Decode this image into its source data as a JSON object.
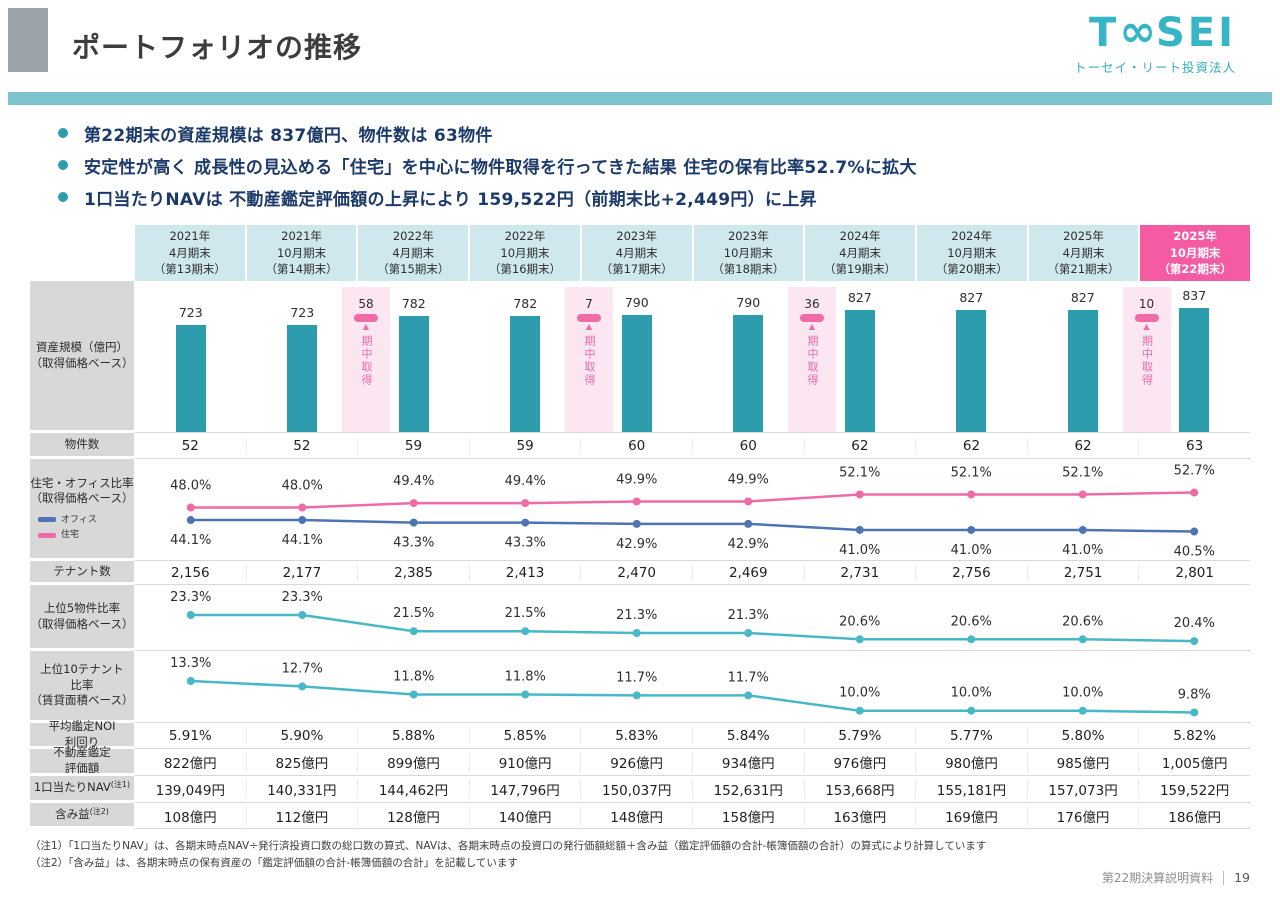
{
  "header": {
    "title": "ポートフォリオの推移",
    "logo": {
      "t": "T",
      "infinity": "∞",
      "sei": "SEI",
      "subtitle": "トーセイ・リート投資法人"
    }
  },
  "bullets": [
    "第22期末の資産規模は 837億円、物件数は 63物件",
    "安定性が高く 成長性の見込める「住宅」を中心に物件取得を行ってきた結果 住宅の保有比率52.7%に拡大",
    "1口当たりNAVは 不動産鑑定評価額の上昇により 159,522円（前期末比+2,449円）に上昇"
  ],
  "periods": [
    {
      "lines": [
        "2021年",
        "4月期末",
        "（第13期末）"
      ],
      "highlight": false
    },
    {
      "lines": [
        "2021年",
        "10月期末",
        "（第14期末）"
      ],
      "highlight": false
    },
    {
      "lines": [
        "2022年",
        "4月期末",
        "（第15期末）"
      ],
      "highlight": false
    },
    {
      "lines": [
        "2022年",
        "10月期末",
        "（第16期末）"
      ],
      "highlight": false
    },
    {
      "lines": [
        "2023年",
        "4月期末",
        "（第17期末）"
      ],
      "highlight": false
    },
    {
      "lines": [
        "2023年",
        "10月期末",
        "（第18期末）"
      ],
      "highlight": false
    },
    {
      "lines": [
        "2024年",
        "4月期末",
        "（第19期末）"
      ],
      "highlight": false
    },
    {
      "lines": [
        "2024年",
        "10月期末",
        "（第20期末）"
      ],
      "highlight": false
    },
    {
      "lines": [
        "2025年",
        "4月期末",
        "（第21期末）"
      ],
      "highlight": false
    },
    {
      "lines": [
        "2025年",
        "10月期末",
        "（第22期末）"
      ],
      "highlight": true
    }
  ],
  "labels": {
    "asset": [
      "資産規模（億円）",
      "（取得価格ベース）"
    ],
    "property_count": "物件数",
    "ratio": [
      "住宅・オフィス比率",
      "（取得価格ベース）"
    ],
    "tenant": "テナント数",
    "top5": [
      "上位5物件比率",
      "（取得価格ベース）"
    ],
    "top10": [
      "上位10テナント",
      "比率",
      "（賃貸面積ベース）"
    ],
    "noi": [
      "平均鑑定NOI",
      "利回り"
    ],
    "appraisal": [
      "不動産鑑定",
      "評価額"
    ],
    "nav": "1口当たりNAV",
    "nav_sup": "(注1)",
    "gains": "含み益",
    "gains_sup": "(注2)"
  },
  "legend": {
    "office": "オフィス",
    "residential": "住宅"
  },
  "chart_data": [
    {
      "type": "bar",
      "title": "資産規模（億円）（取得価格ベース）",
      "categories": [
        "第13期末",
        "第14期末",
        "第15期末",
        "第16期末",
        "第17期末",
        "第18期末",
        "第19期末",
        "第20期末",
        "第21期末",
        "第22期末"
      ],
      "values": [
        723,
        723,
        782,
        782,
        790,
        790,
        827,
        827,
        827,
        837
      ],
      "bar_color": "#2d9dad",
      "interim_acquisitions": [
        {
          "after_index": 1,
          "value": 58,
          "label": "期中取得"
        },
        {
          "after_index": 3,
          "value": 7,
          "label": "期中取得"
        },
        {
          "after_index": 5,
          "value": 36,
          "label": "期中取得"
        },
        {
          "after_index": 8,
          "value": 10,
          "label": "期中取得"
        }
      ]
    },
    {
      "type": "line",
      "title": "住宅・オフィス比率（取得価格ベース）",
      "unit": "%",
      "series": [
        {
          "name": "住宅",
          "color": "#ee6ba6",
          "values": [
            48.0,
            48.0,
            49.4,
            49.4,
            49.9,
            49.9,
            52.1,
            52.1,
            52.1,
            52.7
          ]
        },
        {
          "name": "オフィス",
          "color": "#4e74b2",
          "values": [
            44.1,
            44.1,
            43.3,
            43.3,
            42.9,
            42.9,
            41.0,
            41.0,
            41.0,
            40.5
          ]
        }
      ]
    },
    {
      "type": "line",
      "title": "上位5物件比率（取得価格ベース）",
      "unit": "%",
      "series": [
        {
          "name": "上位5物件比率",
          "color": "#49b8c6",
          "values": [
            23.3,
            23.3,
            21.5,
            21.5,
            21.3,
            21.3,
            20.6,
            20.6,
            20.6,
            20.4
          ]
        }
      ]
    },
    {
      "type": "line",
      "title": "上位10テナント比率（賃貸面積ベース）",
      "unit": "%",
      "series": [
        {
          "name": "上位10テナント比率",
          "color": "#49b8c6",
          "values": [
            13.3,
            12.7,
            11.8,
            11.8,
            11.7,
            11.7,
            10.0,
            10.0,
            10.0,
            9.8
          ]
        }
      ]
    },
    {
      "type": "table",
      "rows": [
        {
          "label": "物件数",
          "values": [
            "52",
            "52",
            "59",
            "59",
            "60",
            "60",
            "62",
            "62",
            "62",
            "63"
          ]
        },
        {
          "label": "テナント数",
          "values": [
            "2,156",
            "2,177",
            "2,385",
            "2,413",
            "2,470",
            "2,469",
            "2,731",
            "2,756",
            "2,751",
            "2,801"
          ]
        },
        {
          "label": "平均鑑定NOI利回り",
          "values": [
            "5.91%",
            "5.90%",
            "5.88%",
            "5.85%",
            "5.83%",
            "5.84%",
            "5.79%",
            "5.77%",
            "5.80%",
            "5.82%"
          ]
        },
        {
          "label": "不動産鑑定評価額",
          "values": [
            "822億円",
            "825億円",
            "899億円",
            "910億円",
            "926億円",
            "934億円",
            "976億円",
            "980億円",
            "985億円",
            "1,005億円"
          ]
        },
        {
          "label": "1口当たりNAV(注1)",
          "values": [
            "139,049円",
            "140,331円",
            "144,462円",
            "147,796円",
            "150,037円",
            "152,631円",
            "153,668円",
            "155,181円",
            "157,073円",
            "159,522円"
          ]
        },
        {
          "label": "含み益(注2)",
          "values": [
            "108億円",
            "112億円",
            "128億円",
            "140億円",
            "148億円",
            "158億円",
            "163億円",
            "169億円",
            "176億円",
            "186億円"
          ]
        }
      ]
    }
  ],
  "notes": [
    "（注1）「1口当たりNAV」は、各期末時点NAV÷発行済投資口数の総口数の算式、NAVは、各期末時点の投資口の発行価額総額＋含み益（鑑定評価額の合計-帳簿価額の合計）の算式により計算しています",
    "（注2）「含み益」は、各期末時点の保有資産の「鑑定評価額の合計-帳簿価額の合計」を記載しています"
  ],
  "footer": {
    "doc_title": "第22期決算説明資料",
    "page": "19"
  },
  "colors": {
    "bar": "#2d9dad",
    "residential_line": "#ee6ba6",
    "office_line": "#4e74b2",
    "teal_line": "#49b8c6",
    "highlight_header": "#f45ba3",
    "header_bg": "#cfe8ee",
    "accent_teal": "#7cc3cd"
  }
}
